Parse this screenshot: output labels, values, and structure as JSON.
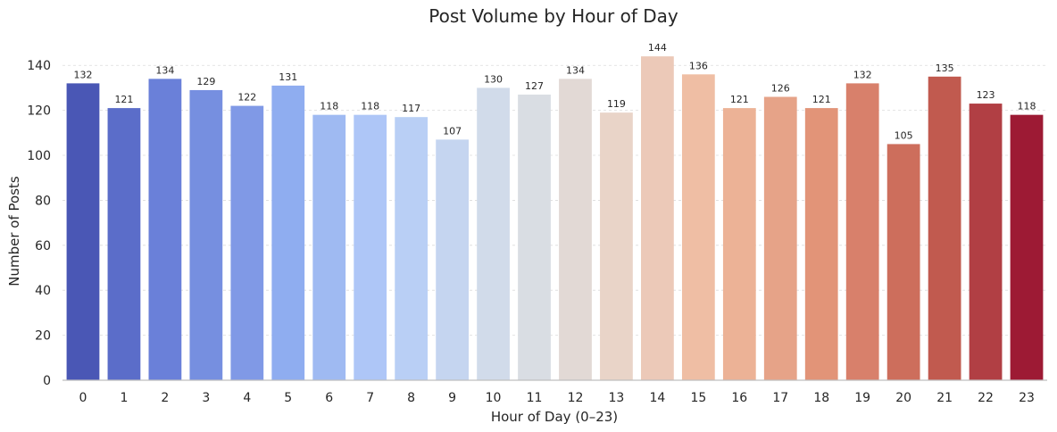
{
  "chart_data": {
    "type": "bar",
    "title": "Post Volume by Hour of Day",
    "xlabel": "Hour of Day (0–23)",
    "ylabel": "Number of Posts",
    "categories": [
      "0",
      "1",
      "2",
      "3",
      "4",
      "5",
      "6",
      "7",
      "8",
      "9",
      "10",
      "11",
      "12",
      "13",
      "14",
      "15",
      "16",
      "17",
      "18",
      "19",
      "20",
      "21",
      "22",
      "23"
    ],
    "values": [
      132,
      121,
      134,
      129,
      122,
      131,
      118,
      118,
      117,
      107,
      130,
      127,
      134,
      119,
      144,
      136,
      121,
      126,
      121,
      132,
      105,
      135,
      123,
      118
    ],
    "yticks": [
      0,
      20,
      40,
      60,
      80,
      100,
      120,
      140
    ],
    "ylim": [
      0,
      151.2
    ],
    "grid": "horizontal-dashed",
    "colors": [
      "#4a57b5",
      "#5b6dc9",
      "#6a80d9",
      "#768fe0",
      "#8099e6",
      "#8fadf0",
      "#9fbaf2",
      "#aec6f7",
      "#b9cff5",
      "#c5d5f0",
      "#d1dbea",
      "#d9dde3",
      "#e2d9d5",
      "#e9d4c8",
      "#ecc9b8",
      "#efbea4",
      "#ecb296",
      "#e6a388",
      "#e29478",
      "#d8806b",
      "#cd6e5c",
      "#c15a4f",
      "#b13f44",
      "#9d1a34"
    ]
  }
}
